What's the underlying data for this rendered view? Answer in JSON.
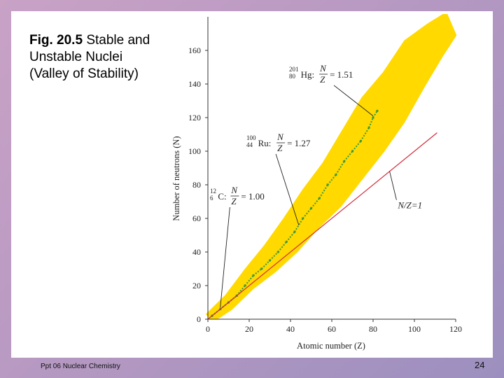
{
  "slide": {
    "title_bold": "Fig. 20.5",
    "title_rest": "Stable and Unstable Nuclei (Valley of Stability)",
    "footer": "Ppt 06 Nuclear Chemistry",
    "page_number": "24"
  },
  "chart_data": {
    "type": "scatter",
    "xlabel": "Atomic number (Z)",
    "ylabel": "Number of neutrons (N)",
    "xlim": [
      0,
      120
    ],
    "ylim": [
      0,
      180
    ],
    "xticks": [
      "0",
      "20",
      "40",
      "60",
      "80",
      "100",
      "120"
    ],
    "yticks": [
      "0",
      "20",
      "40",
      "60",
      "80",
      "100",
      "120",
      "140",
      "160"
    ],
    "grid": false,
    "series": [
      {
        "name": "",
        "color": "#ffd900",
        "band_center": [
          [
            0,
            0
          ],
          [
            10,
            10
          ],
          [
            20,
            24
          ],
          [
            30,
            36
          ],
          [
            40,
            50
          ],
          [
            50,
            66
          ],
          [
            60,
            80
          ],
          [
            70,
            98
          ],
          [
            80,
            116
          ],
          [
            90,
            132
          ],
          [
            100,
            152
          ],
          [
            110,
            166
          ],
          [
            118,
            176
          ]
        ],
        "band_halfwidth": [
          [
            0,
            3
          ],
          [
            20,
            6
          ],
          [
            40,
            10
          ],
          [
            60,
            13
          ],
          [
            80,
            16
          ],
          [
            100,
            14
          ],
          [
            118,
            7
          ]
        ]
      },
      {
        "name": "",
        "color": "#3c9a3c",
        "points": [
          [
            2,
            2
          ],
          [
            6,
            6
          ],
          [
            10,
            10
          ],
          [
            14,
            14
          ],
          [
            18,
            20
          ],
          [
            22,
            26
          ],
          [
            26,
            30
          ],
          [
            30,
            35
          ],
          [
            34,
            40
          ],
          [
            38,
            46
          ],
          [
            42,
            52
          ],
          [
            46,
            60
          ],
          [
            50,
            66
          ],
          [
            54,
            72
          ],
          [
            58,
            80
          ],
          [
            62,
            86
          ],
          [
            66,
            94
          ],
          [
            70,
            100
          ],
          [
            74,
            106
          ],
          [
            78,
            114
          ],
          [
            80,
            120
          ],
          [
            82,
            124
          ]
        ]
      },
      {
        "name": "N/Z=1",
        "color": "#d42a3a",
        "line": [
          [
            0,
            0
          ],
          [
            111,
            111
          ]
        ]
      }
    ],
    "annotations": [
      {
        "nuclide_mass": "12",
        "nuclide_z": "6",
        "symbol": "C:",
        "ratio_label_n": "N",
        "ratio_label_z": "Z",
        "ratio_value": "= 1.00",
        "x": 6,
        "y": 6
      },
      {
        "nuclide_mass": "100",
        "nuclide_z": "44",
        "symbol": "Ru:",
        "ratio_label_n": "N",
        "ratio_label_z": "Z",
        "ratio_value": "= 1.27",
        "x": 44,
        "y": 56
      },
      {
        "nuclide_mass": "201",
        "nuclide_z": "80",
        "symbol": "Hg:",
        "ratio_label_n": "N",
        "ratio_label_z": "Z",
        "ratio_value": "= 1.51",
        "x": 80,
        "y": 121
      }
    ],
    "line_label": "N/Z=1"
  }
}
